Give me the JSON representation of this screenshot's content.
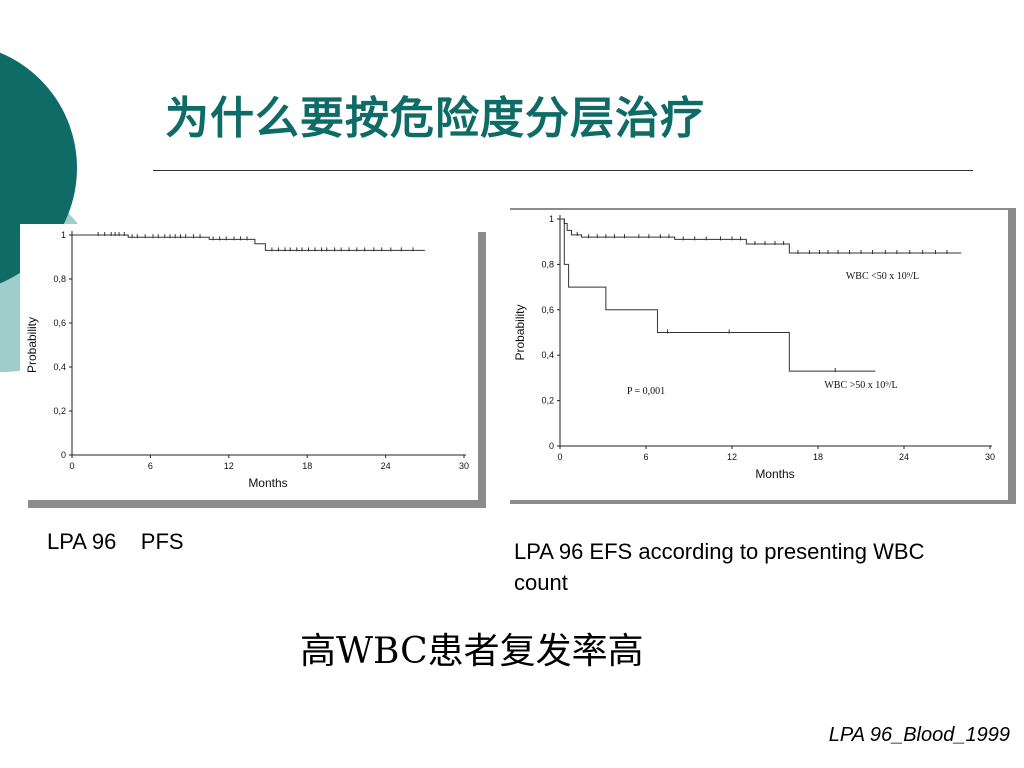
{
  "slide": {
    "title": "为什么要按危险度分层治疗",
    "conclusion": "高WBC患者复发率高",
    "citation": "LPA 96_Blood_1999",
    "accent_color": "#0e6b66",
    "accent_light": "#9ecdcb"
  },
  "captions": {
    "left": "LPA 96    PFS",
    "right": "LPA 96 EFS according to presenting WBC count"
  },
  "chart_data": [
    {
      "type": "line",
      "xlabel": "Months",
      "ylabel": "Probability",
      "xlim": [
        0,
        30
      ],
      "ylim": [
        0,
        1
      ],
      "xticks": [
        0,
        6,
        12,
        18,
        24,
        30
      ],
      "yticks": [
        0,
        0.2,
        0.4,
        0.6,
        0.8,
        1
      ],
      "ytick_labels": [
        "0",
        "0,2",
        "0,4",
        "0,6",
        "0,8",
        "1"
      ],
      "grid": false,
      "series": [
        {
          "steps": [
            [
              0,
              1.0
            ],
            [
              4.3,
              0.99
            ],
            [
              10.5,
              0.98
            ],
            [
              14.0,
              0.96
            ],
            [
              14.8,
              0.93
            ],
            [
              27.0,
              0.93
            ]
          ],
          "censor": [
            2.0,
            2.5,
            3.0,
            3.3,
            3.6,
            4.0,
            4.6,
            5.0,
            5.6,
            6.2,
            6.6,
            7.1,
            7.5,
            7.9,
            8.3,
            8.7,
            9.3,
            9.8,
            10.8,
            11.3,
            11.8,
            12.4,
            12.9,
            13.4,
            15.3,
            15.8,
            16.3,
            16.7,
            17.2,
            17.6,
            18.1,
            18.6,
            19.1,
            19.5,
            20.1,
            20.6,
            21.2,
            21.8,
            22.4,
            23.1,
            23.7,
            24.4,
            25.2,
            26.1
          ]
        }
      ]
    },
    {
      "type": "line",
      "xlabel": "Months",
      "ylabel": "Probability",
      "xlim": [
        0,
        30
      ],
      "ylim": [
        0,
        1
      ],
      "xticks": [
        0,
        6,
        12,
        18,
        24,
        30
      ],
      "yticks": [
        0,
        0.2,
        0.4,
        0.6,
        0.8,
        1
      ],
      "ytick_labels": [
        "0",
        "0,2",
        "0,4",
        "0,6",
        "0,8",
        "1"
      ],
      "grid": false,
      "annotations": {
        "p_value": "P = 0,001",
        "label_low": "WBC <50 x 10⁹/L",
        "label_high": "WBC >50 x 10⁹/L"
      },
      "series": [
        {
          "steps": [
            [
              0,
              1.0
            ],
            [
              0.3,
              0.98
            ],
            [
              0.5,
              0.95
            ],
            [
              0.8,
              0.93
            ],
            [
              1.5,
              0.92
            ],
            [
              8.0,
              0.91
            ],
            [
              13.0,
              0.89
            ],
            [
              16.0,
              0.85
            ],
            [
              28.0,
              0.85
            ]
          ],
          "censor": [
            1.2,
            2.0,
            2.6,
            3.2,
            3.8,
            4.5,
            5.5,
            6.2,
            7.0,
            7.6,
            8.6,
            9.4,
            10.2,
            11.2,
            12.0,
            12.6,
            13.6,
            14.3,
            15.0,
            15.6,
            16.6,
            17.4,
            18.1,
            18.7,
            19.4,
            20.2,
            21.0,
            21.8,
            22.7,
            23.5,
            24.4,
            25.3,
            26.2,
            27.0
          ]
        },
        {
          "steps": [
            [
              0,
              1.0
            ],
            [
              0.3,
              0.8
            ],
            [
              0.6,
              0.7
            ],
            [
              3.2,
              0.6
            ],
            [
              6.8,
              0.5
            ],
            [
              16.0,
              0.33
            ],
            [
              22.0,
              0.33
            ]
          ],
          "censor": [
            7.5,
            11.8,
            19.2
          ]
        }
      ]
    }
  ]
}
